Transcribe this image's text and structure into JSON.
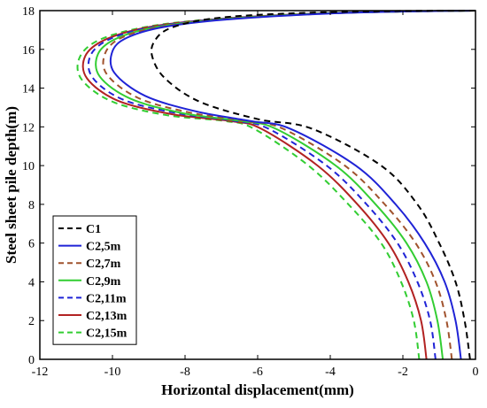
{
  "chart_data": {
    "type": "line",
    "xlabel": "Horizontal displacement(mm)",
    "ylabel": "Steel sheet pile depth(m)",
    "xlim": [
      -12,
      0
    ],
    "ylim": [
      0,
      18
    ],
    "xticks": [
      -12,
      -10,
      -8,
      -6,
      -4,
      -2,
      0
    ],
    "yticks": [
      0,
      2,
      4,
      6,
      8,
      10,
      12,
      14,
      16,
      18
    ],
    "xtick_labels": [
      "-12",
      "-10",
      "-8",
      "-6",
      "-4",
      "-2",
      "0"
    ],
    "ytick_labels": [
      "0",
      "2",
      "4",
      "6",
      "8",
      "10",
      "12",
      "14",
      "16",
      "18"
    ],
    "grid": false,
    "legend_position": "bottom-left",
    "series": [
      {
        "name": "C1",
        "color": "#000000",
        "dash": "dashed",
        "points": [
          [
            -0.15,
            0
          ],
          [
            -0.3,
            2
          ],
          [
            -0.55,
            4
          ],
          [
            -1.0,
            6
          ],
          [
            -1.6,
            8
          ],
          [
            -2.6,
            10
          ],
          [
            -4.5,
            11.9
          ],
          [
            -6.0,
            12.4
          ],
          [
            -7.6,
            13.3
          ],
          [
            -8.55,
            14.5
          ],
          [
            -8.9,
            15.6
          ],
          [
            -8.85,
            16.4
          ],
          [
            -8.4,
            17.1
          ],
          [
            -7.2,
            17.6
          ],
          [
            -5.2,
            17.85
          ],
          [
            -2.5,
            17.97
          ],
          [
            0,
            18
          ]
        ]
      },
      {
        "name": "C2,5m",
        "color": "#1f23d6",
        "dash": "solid",
        "points": [
          [
            -0.4,
            0
          ],
          [
            -0.55,
            2
          ],
          [
            -0.85,
            4
          ],
          [
            -1.4,
            6
          ],
          [
            -2.2,
            8
          ],
          [
            -3.3,
            10
          ],
          [
            -5.1,
            11.9
          ],
          [
            -6.2,
            12.3
          ],
          [
            -7.7,
            12.8
          ],
          [
            -9.1,
            13.6
          ],
          [
            -9.95,
            14.8
          ],
          [
            -10.0,
            15.9
          ],
          [
            -9.6,
            16.6
          ],
          [
            -8.6,
            17.15
          ],
          [
            -6.8,
            17.55
          ],
          [
            -4.0,
            17.85
          ],
          [
            -1.5,
            17.97
          ],
          [
            0,
            18
          ]
        ]
      },
      {
        "name": "C2,7m",
        "color": "#a0522d",
        "dash": "dashed",
        "points": [
          [
            -0.65,
            0
          ],
          [
            -0.8,
            2
          ],
          [
            -1.1,
            4
          ],
          [
            -1.65,
            6
          ],
          [
            -2.5,
            8
          ],
          [
            -3.6,
            10
          ],
          [
            -5.3,
            11.9
          ],
          [
            -6.3,
            12.3
          ],
          [
            -7.9,
            12.75
          ],
          [
            -9.3,
            13.5
          ],
          [
            -10.15,
            14.7
          ],
          [
            -10.2,
            15.8
          ],
          [
            -9.75,
            16.6
          ],
          [
            -8.7,
            17.15
          ],
          [
            -6.9,
            17.55
          ],
          [
            -4.1,
            17.85
          ],
          [
            -1.5,
            17.97
          ],
          [
            0,
            18
          ]
        ]
      },
      {
        "name": "C2,9m",
        "color": "#32cd32",
        "dash": "solid",
        "points": [
          [
            -0.9,
            0
          ],
          [
            -1.05,
            2
          ],
          [
            -1.35,
            4
          ],
          [
            -1.9,
            6
          ],
          [
            -2.75,
            8
          ],
          [
            -3.85,
            10
          ],
          [
            -5.5,
            11.9
          ],
          [
            -6.45,
            12.3
          ],
          [
            -8.05,
            12.7
          ],
          [
            -9.5,
            13.45
          ],
          [
            -10.35,
            14.6
          ],
          [
            -10.4,
            15.75
          ],
          [
            -9.9,
            16.55
          ],
          [
            -8.8,
            17.15
          ],
          [
            -7.0,
            17.55
          ],
          [
            -4.2,
            17.85
          ],
          [
            -1.5,
            17.97
          ],
          [
            0,
            18
          ]
        ]
      },
      {
        "name": "C2,11m",
        "color": "#1f23d6",
        "dash": "dashed",
        "points": [
          [
            -1.1,
            0
          ],
          [
            -1.25,
            2
          ],
          [
            -1.6,
            4
          ],
          [
            -2.15,
            6
          ],
          [
            -3.0,
            8
          ],
          [
            -4.1,
            10
          ],
          [
            -5.7,
            11.9
          ],
          [
            -6.6,
            12.3
          ],
          [
            -8.2,
            12.7
          ],
          [
            -9.7,
            13.4
          ],
          [
            -10.55,
            14.55
          ],
          [
            -10.6,
            15.7
          ],
          [
            -10.05,
            16.55
          ],
          [
            -8.9,
            17.15
          ],
          [
            -7.1,
            17.55
          ],
          [
            -4.3,
            17.85
          ],
          [
            -1.5,
            17.97
          ],
          [
            0,
            18
          ]
        ]
      },
      {
        "name": "C2,13m",
        "color": "#b22222",
        "dash": "solid",
        "points": [
          [
            -1.35,
            0
          ],
          [
            -1.5,
            2
          ],
          [
            -1.85,
            4
          ],
          [
            -2.4,
            6
          ],
          [
            -3.25,
            8
          ],
          [
            -4.35,
            10
          ],
          [
            -5.9,
            11.9
          ],
          [
            -6.75,
            12.3
          ],
          [
            -8.35,
            12.65
          ],
          [
            -9.85,
            13.35
          ],
          [
            -10.7,
            14.5
          ],
          [
            -10.75,
            15.65
          ],
          [
            -10.2,
            16.5
          ],
          [
            -9.0,
            17.15
          ],
          [
            -7.2,
            17.55
          ],
          [
            -4.4,
            17.85
          ],
          [
            -1.5,
            17.97
          ],
          [
            0,
            18
          ]
        ]
      },
      {
        "name": "C2,15m",
        "color": "#32cd32",
        "dash": "dashed",
        "points": [
          [
            -1.55,
            0
          ],
          [
            -1.7,
            2
          ],
          [
            -2.05,
            4
          ],
          [
            -2.6,
            6
          ],
          [
            -3.5,
            8
          ],
          [
            -4.6,
            10
          ],
          [
            -6.1,
            11.9
          ],
          [
            -6.9,
            12.3
          ],
          [
            -8.5,
            12.6
          ],
          [
            -10.0,
            13.3
          ],
          [
            -10.85,
            14.45
          ],
          [
            -10.9,
            15.6
          ],
          [
            -10.35,
            16.5
          ],
          [
            -9.1,
            17.15
          ],
          [
            -7.3,
            17.55
          ],
          [
            -4.5,
            17.85
          ],
          [
            -1.5,
            17.97
          ],
          [
            0,
            18
          ]
        ]
      }
    ]
  }
}
